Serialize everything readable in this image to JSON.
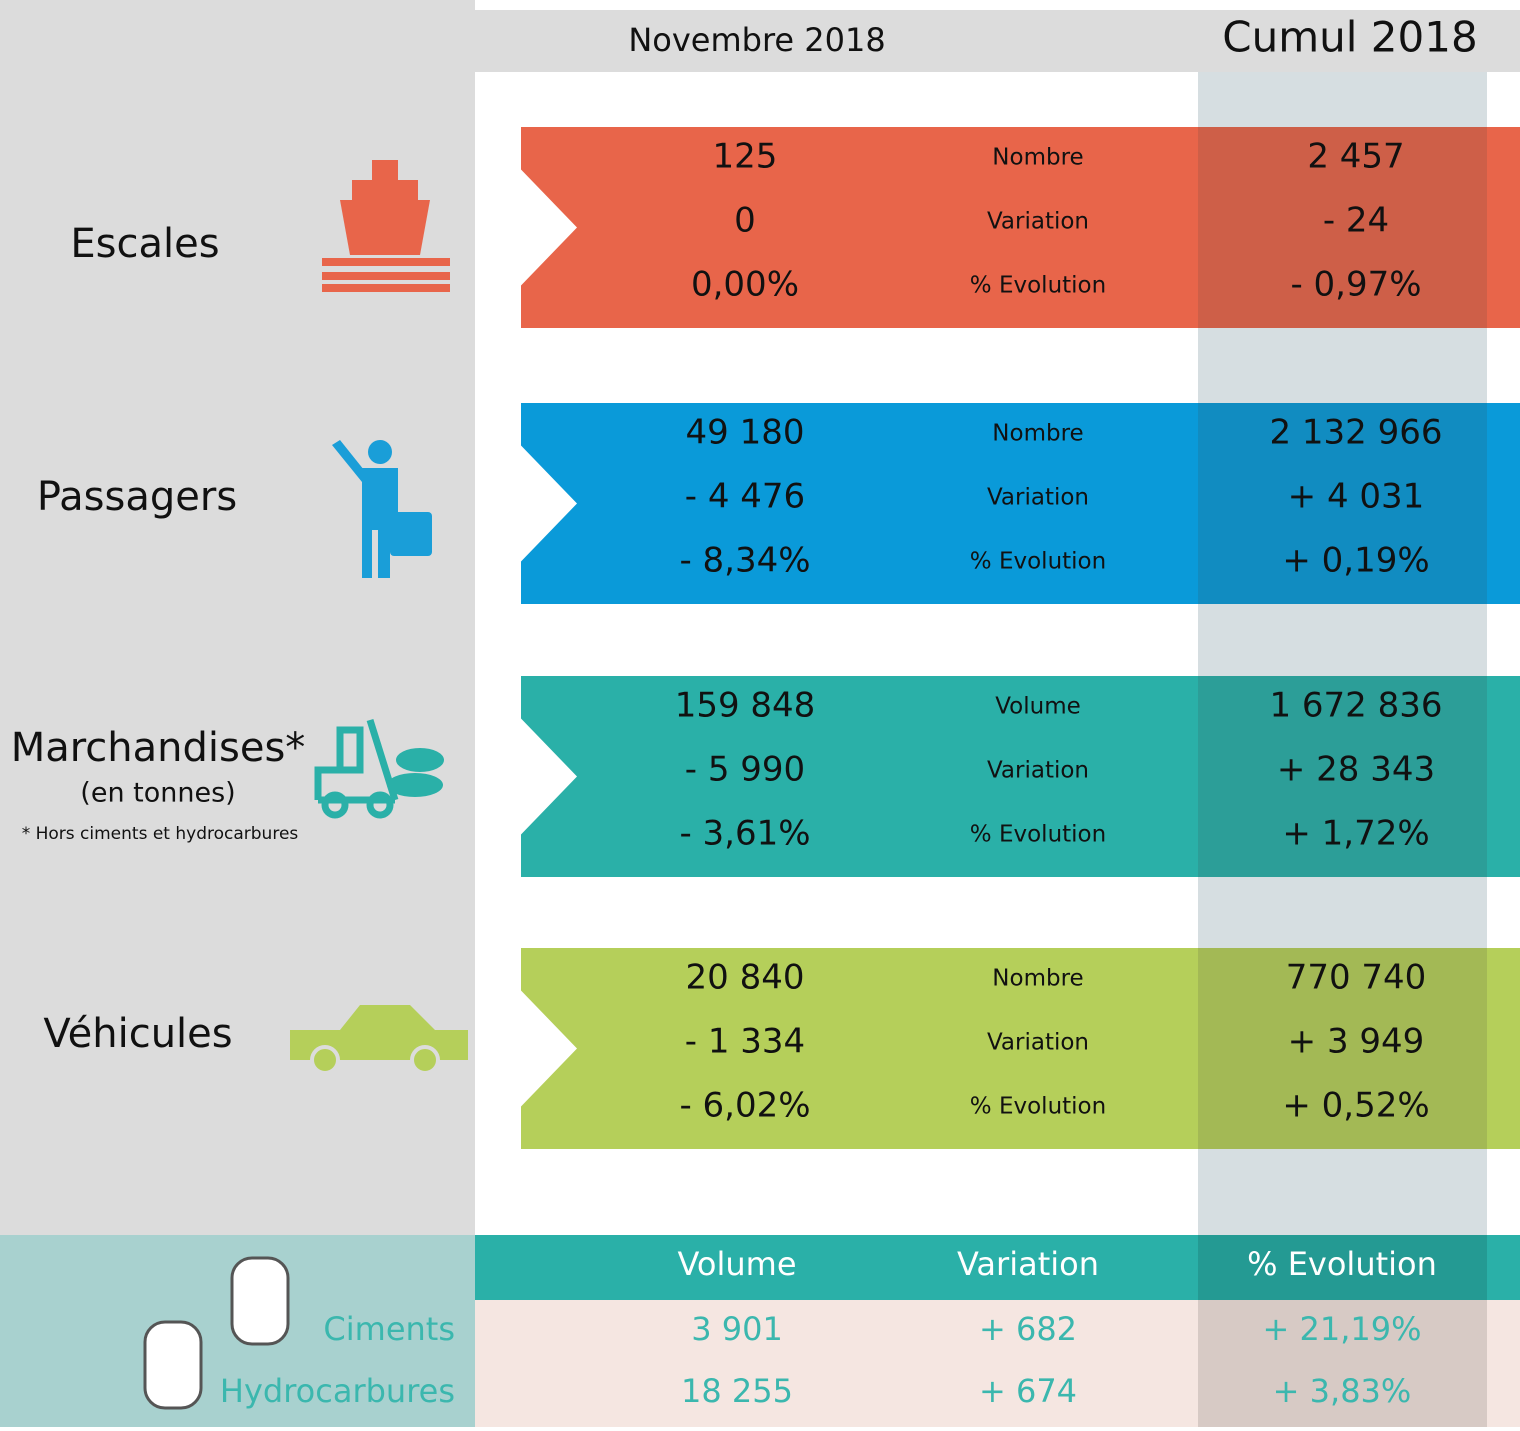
{
  "header": {
    "month": "Novembre 2018",
    "cumul": "Cumul 2018"
  },
  "sections": [
    {
      "label": "Escales",
      "color": "#e8654a",
      "rows": [
        {
          "month": "125",
          "metric": "Nombre",
          "cumul": "2 457"
        },
        {
          "month": "0",
          "metric": "Variation",
          "cumul": "- 24"
        },
        {
          "month": "0,00%",
          "metric": "% Evolution",
          "cumul": "- 0,97%"
        }
      ]
    },
    {
      "label": "Passagers",
      "color": "#0a9ad9",
      "rows": [
        {
          "month": "49 180",
          "metric": "Nombre",
          "cumul": "2 132 966"
        },
        {
          "month": "- 4 476",
          "metric": "Variation",
          "cumul": "+ 4 031"
        },
        {
          "month": "- 8,34%",
          "metric": "% Evolution",
          "cumul": "+ 0,19%"
        }
      ]
    },
    {
      "label": "Marchandises*",
      "sublabel": "(en tonnes)",
      "note": "* Hors ciments et hydrocarbures",
      "color": "#2ab0a8",
      "rows": [
        {
          "month": "159 848",
          "metric": "Volume",
          "cumul": "1 672 836"
        },
        {
          "month": "- 5 990",
          "metric": "Variation",
          "cumul": "+ 28 343"
        },
        {
          "month": "- 3,61%",
          "metric": "% Evolution",
          "cumul": "+ 1,72%"
        }
      ]
    },
    {
      "label": "Véhicules",
      "color": "#b5cf5a",
      "rows": [
        {
          "month": "20 840",
          "metric": "Nombre",
          "cumul": "770 740"
        },
        {
          "month": "- 1 334",
          "metric": "Variation",
          "cumul": "+ 3 949"
        },
        {
          "month": "- 6,02%",
          "metric": "% Evolution",
          "cumul": "+ 0,52%"
        }
      ]
    }
  ],
  "bottom": {
    "headers": [
      "Volume",
      "Variation",
      "% Evolution"
    ],
    "rows": [
      {
        "label": "Ciments",
        "values": [
          "3 901",
          "+ 682",
          "+ 21,19%"
        ]
      },
      {
        "label": "Hydrocarbures",
        "values": [
          "18 255",
          "+ 674",
          "+ 3,83%"
        ]
      }
    ]
  }
}
